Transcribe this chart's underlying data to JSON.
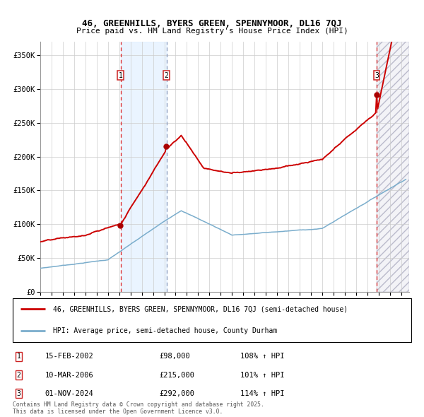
{
  "title_line1": "46, GREENHILLS, BYERS GREEN, SPENNYMOOR, DL16 7QJ",
  "title_line2": "Price paid vs. HM Land Registry's House Price Index (HPI)",
  "ylim": [
    0,
    370000
  ],
  "yticks": [
    0,
    50000,
    100000,
    150000,
    200000,
    250000,
    300000,
    350000
  ],
  "ytick_labels": [
    "£0",
    "£50K",
    "£100K",
    "£150K",
    "£200K",
    "£250K",
    "£300K",
    "£350K"
  ],
  "sale1_year": 2002,
  "sale1_month": 2,
  "sale1_day": 15,
  "sale1_price": 98000,
  "sale2_year": 2006,
  "sale2_month": 3,
  "sale2_day": 10,
  "sale2_price": 215000,
  "sale3_year": 2024,
  "sale3_month": 11,
  "sale3_day": 1,
  "sale3_price": 292000,
  "line_color_red": "#cc0000",
  "line_color_blue": "#7aadcc",
  "marker_color_red": "#aa0000",
  "background_color": "#ffffff",
  "grid_color": "#cccccc",
  "shade_color_between": "#ddeeff",
  "shade_alpha_between": 0.6,
  "legend_label_red": "46, GREENHILLS, BYERS GREEN, SPENNYMOOR, DL16 7QJ (semi-detached house)",
  "legend_label_blue": "HPI: Average price, semi-detached house, County Durham",
  "table_entries": [
    {
      "num": "1",
      "date": "15-FEB-2002",
      "price": "£98,000",
      "hpi": "108% ↑ HPI"
    },
    {
      "num": "2",
      "date": "10-MAR-2006",
      "price": "£215,000",
      "hpi": "101% ↑ HPI"
    },
    {
      "num": "3",
      "date": "01-NOV-2024",
      "price": "£292,000",
      "hpi": "114% ↑ HPI"
    }
  ],
  "footer": "Contains HM Land Registry data © Crown copyright and database right 2025.\nThis data is licensed under the Open Government Licence v3.0."
}
